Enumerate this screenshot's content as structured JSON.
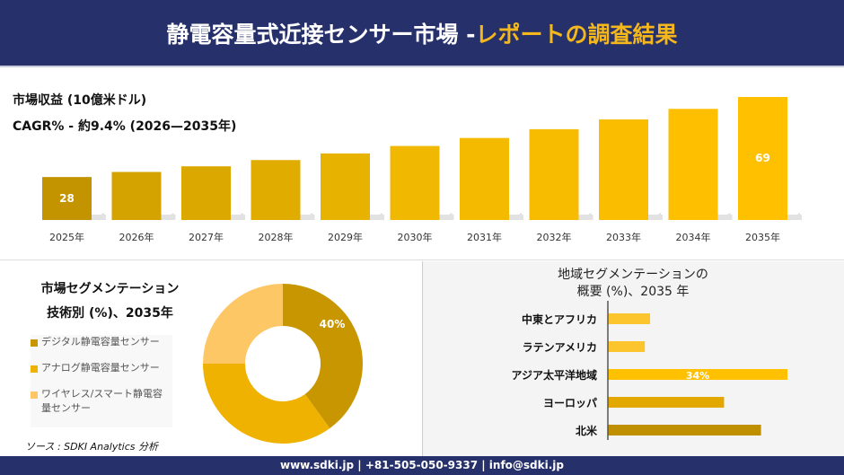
{
  "header": {
    "title_main": "静電容量式近接センサー市場 -",
    "title_accent": "レポートの調査結果"
  },
  "revenue": {
    "title": "市場収益 (10億米ドル)",
    "cagr": "CAGR% - 約9.4% (2026—2035年)"
  },
  "chart_data": [
    {
      "type": "bar",
      "categories": [
        "2025年",
        "2026年",
        "2027年",
        "2028年",
        "2029年",
        "2030年",
        "2031年",
        "2032年",
        "2033年",
        "2034年",
        "2035年"
      ],
      "values": [
        28,
        30.6,
        33.5,
        36.7,
        40.1,
        43.9,
        48,
        52.5,
        57.5,
        62.9,
        69
      ],
      "data_labels": {
        "0": "28",
        "10": "69"
      },
      "colors": [
        "#c49400",
        "#d5a300",
        "#dba800",
        "#e0ac00",
        "#e8b200",
        "#f0b800",
        "#f3ba00",
        "#f7bc00",
        "#fabd00",
        "#fdbf00",
        "#ffc000"
      ]
    },
    {
      "type": "pie",
      "title": "市場セグメンテーション",
      "subtitle": "技術別 (%)、2035年",
      "labels": [
        "デジタル静電容量センサー",
        "アナログ静電容量センサー",
        "ワイヤレス/スマート静電容量センサー"
      ],
      "values": [
        40,
        35,
        25
      ],
      "data_labels": {
        "0": "40%"
      },
      "colors": [
        "#c89600",
        "#efb200",
        "#fdc766"
      ]
    },
    {
      "type": "bar",
      "orientation": "horizontal",
      "title": "地域セグメンテーションの",
      "subtitle": "概要 (%)、2035 年",
      "categories": [
        "中東とアフリカ",
        "ラテンアメリカ",
        "アジア太平洋地域",
        "ヨーロッパ",
        "北米"
      ],
      "values": [
        8,
        7,
        34,
        22,
        29
      ],
      "data_labels": {
        "2": "34%"
      },
      "colors": [
        "#fcc52e",
        "#fcc52e",
        "#ffc000",
        "#e3a800",
        "#c08f00"
      ]
    }
  ],
  "source": "ソース : SDKI Analytics 分析",
  "footer": "www.sdki.jp | +81-505-050-9337 | info@sdki.jp"
}
